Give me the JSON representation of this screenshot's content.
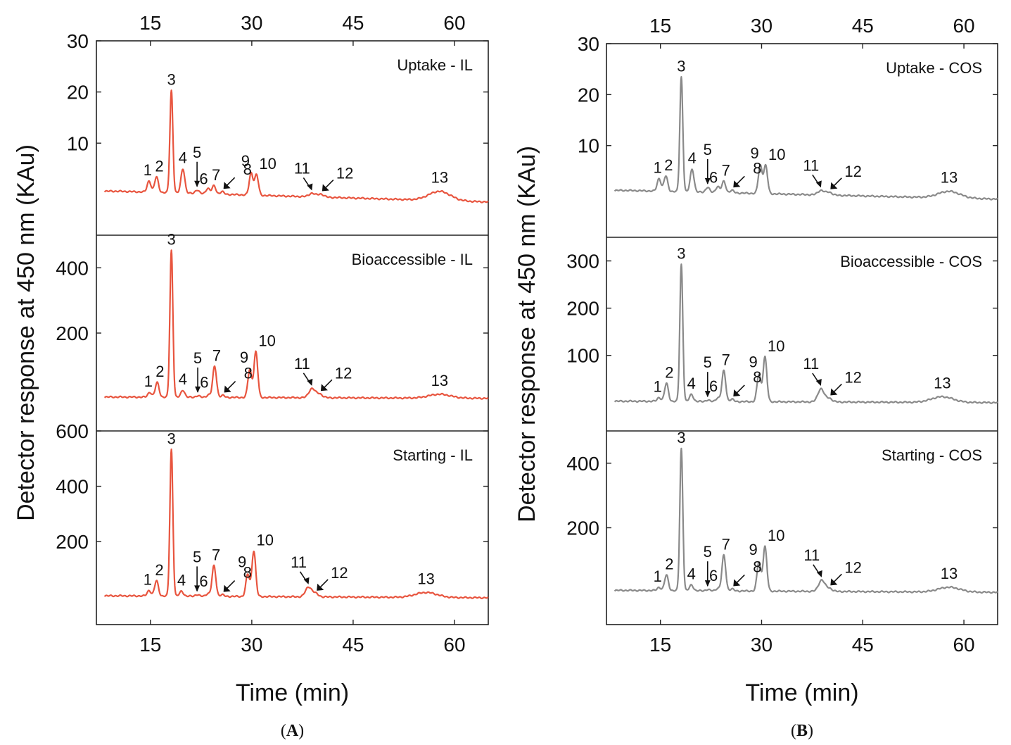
{
  "figure": {
    "y_axis_label": "Detector response at 450 nm (KAu)",
    "x_axis_label": "Time (min)",
    "x_ticks": [
      15,
      30,
      45,
      60
    ],
    "x_range": [
      7,
      65
    ]
  },
  "chart_data": [
    {
      "type": "line",
      "panel": "A",
      "caption_letter": "A",
      "color": "#e8553f",
      "xlabel": "Time (min)",
      "ylabel": "Detector response at 450 nm (KAu)",
      "subplots": [
        {
          "title": "Uptake - IL",
          "ylim": [
            -8,
            30
          ],
          "yticks": [
            10,
            20,
            30
          ],
          "baseline": 0.6,
          "end_level": -1.5,
          "peaks": [
            {
              "label": "1",
              "time": 14.8,
              "height": 2.2
            },
            {
              "label": "2",
              "time": 15.9,
              "height": 3.0
            },
            {
              "label": "3",
              "time": 18.1,
              "height": 20.0
            },
            {
              "label": "4",
              "time": 19.8,
              "height": 4.8
            },
            {
              "label": "5",
              "time": 21.9,
              "height": 0.7
            },
            {
              "label": "6",
              "time": 23.5,
              "height": 1.1
            },
            {
              "label": "7",
              "time": 24.4,
              "height": 1.6
            },
            {
              "label": "8",
              "time": 25.6,
              "height": 0.5
            },
            {
              "label": "9",
              "time": 29.9,
              "height": 4.3
            },
            {
              "label": "10",
              "time": 30.7,
              "height": 4.0
            },
            {
              "label": "11",
              "time": 38.9,
              "height": 0.7
            },
            {
              "label": "12",
              "time": 40.2,
              "height": 0.6
            },
            {
              "label": "13",
              "time": 57.8,
              "height": 1.8
            }
          ]
        },
        {
          "title": "Bioaccessible - IL",
          "ylim": [
            -100,
            500
          ],
          "yticks": [
            200,
            400
          ],
          "baseline": 4,
          "end_level": 0,
          "peaks": [
            {
              "label": "1",
              "time": 14.9,
              "height": 15
            },
            {
              "label": "2",
              "time": 16.0,
              "height": 45
            },
            {
              "label": "3",
              "time": 18.1,
              "height": 450
            },
            {
              "label": "4",
              "time": 19.8,
              "height": 22
            },
            {
              "label": "5",
              "time": 22.0,
              "height": 5
            },
            {
              "label": "6",
              "time": 23.6,
              "height": 8
            },
            {
              "label": "7",
              "time": 24.5,
              "height": 95
            },
            {
              "label": "8",
              "time": 25.7,
              "height": 6
            },
            {
              "label": "9",
              "time": 29.7,
              "height": 85
            },
            {
              "label": "10",
              "time": 30.6,
              "height": 140
            },
            {
              "label": "11",
              "time": 38.9,
              "height": 28
            },
            {
              "label": "12",
              "time": 40.0,
              "height": 12
            },
            {
              "label": "13",
              "time": 57.8,
              "height": 12
            }
          ]
        },
        {
          "title": "Starting - IL",
          "ylim": [
            -100,
            600
          ],
          "yticks": [
            200,
            400,
            600
          ],
          "baseline": 4,
          "end_level": -3,
          "peaks": [
            {
              "label": "1",
              "time": 14.8,
              "height": 20
            },
            {
              "label": "2",
              "time": 15.9,
              "height": 55
            },
            {
              "label": "3",
              "time": 18.1,
              "height": 530
            },
            {
              "label": "4",
              "time": 19.6,
              "height": 18
            },
            {
              "label": "5",
              "time": 21.9,
              "height": 6
            },
            {
              "label": "6",
              "time": 23.5,
              "height": 10
            },
            {
              "label": "7",
              "time": 24.4,
              "height": 110
            },
            {
              "label": "8",
              "time": 25.6,
              "height": 6
            },
            {
              "label": "9",
              "time": 29.4,
              "height": 80
            },
            {
              "label": "10",
              "time": 30.3,
              "height": 165
            },
            {
              "label": "11",
              "time": 38.4,
              "height": 35
            },
            {
              "label": "12",
              "time": 39.4,
              "height": 12
            },
            {
              "label": "13",
              "time": 55.8,
              "height": 18
            }
          ]
        }
      ]
    },
    {
      "type": "line",
      "panel": "B",
      "caption_letter": "B",
      "color": "#8a8a8a",
      "xlabel": "Time (min)",
      "ylabel": "Detector response at 450 nm (KAu)",
      "subplots": [
        {
          "title": "Uptake - COS",
          "ylim": [
            -8,
            30
          ],
          "yticks": [
            10,
            20,
            30
          ],
          "baseline": 1.2,
          "end_level": -0.5,
          "peaks": [
            {
              "label": "1",
              "time": 14.8,
              "height": 2.5
            },
            {
              "label": "2",
              "time": 15.8,
              "height": 3.0
            },
            {
              "label": "3",
              "time": 18.1,
              "height": 22.5
            },
            {
              "label": "4",
              "time": 19.7,
              "height": 4.5
            },
            {
              "label": "5",
              "time": 22.0,
              "height": 1.0
            },
            {
              "label": "6",
              "time": 23.5,
              "height": 1.2
            },
            {
              "label": "7",
              "time": 24.4,
              "height": 2.2
            },
            {
              "label": "8",
              "time": 25.6,
              "height": 0.5
            },
            {
              "label": "9",
              "time": 29.8,
              "height": 5.5
            },
            {
              "label": "10",
              "time": 30.6,
              "height": 5.5
            },
            {
              "label": "11",
              "time": 38.8,
              "height": 0.9
            },
            {
              "label": "12",
              "time": 40.0,
              "height": 0.6
            },
            {
              "label": "13",
              "time": 57.8,
              "height": 1.3
            }
          ]
        },
        {
          "title": "Bioaccessible - COS",
          "ylim": [
            -60,
            350
          ],
          "yticks": [
            100,
            200,
            300
          ],
          "baseline": 3,
          "end_level": 0,
          "peaks": [
            {
              "label": "1",
              "time": 14.8,
              "height": 8
            },
            {
              "label": "2",
              "time": 15.9,
              "height": 38
            },
            {
              "label": "3",
              "time": 18.1,
              "height": 290
            },
            {
              "label": "4",
              "time": 19.6,
              "height": 15
            },
            {
              "label": "5",
              "time": 22.0,
              "height": 3
            },
            {
              "label": "6",
              "time": 23.5,
              "height": 8
            },
            {
              "label": "7",
              "time": 24.4,
              "height": 65
            },
            {
              "label": "8",
              "time": 25.6,
              "height": 5
            },
            {
              "label": "9",
              "time": 29.6,
              "height": 58
            },
            {
              "label": "10",
              "time": 30.5,
              "height": 95
            },
            {
              "label": "11",
              "time": 38.8,
              "height": 28
            },
            {
              "label": "12",
              "time": 40.0,
              "height": 8
            },
            {
              "label": "13",
              "time": 56.8,
              "height": 12
            }
          ]
        },
        {
          "title": "Starting - COS",
          "ylim": [
            -100,
            500
          ],
          "yticks": [
            200,
            400
          ],
          "baseline": 6,
          "end_level": 0,
          "peaks": [
            {
              "label": "1",
              "time": 14.8,
              "height": 10
            },
            {
              "label": "2",
              "time": 15.9,
              "height": 48
            },
            {
              "label": "3",
              "time": 18.1,
              "height": 440
            },
            {
              "label": "4",
              "time": 19.6,
              "height": 18
            },
            {
              "label": "5",
              "time": 22.0,
              "height": 4
            },
            {
              "label": "6",
              "time": 23.5,
              "height": 8
            },
            {
              "label": "7",
              "time": 24.4,
              "height": 110
            },
            {
              "label": "8",
              "time": 25.6,
              "height": 6
            },
            {
              "label": "9",
              "time": 29.6,
              "height": 90
            },
            {
              "label": "10",
              "time": 30.5,
              "height": 138
            },
            {
              "label": "11",
              "time": 38.9,
              "height": 35
            },
            {
              "label": "12",
              "time": 40.0,
              "height": 10
            },
            {
              "label": "13",
              "time": 57.8,
              "height": 15
            }
          ]
        }
      ]
    }
  ]
}
